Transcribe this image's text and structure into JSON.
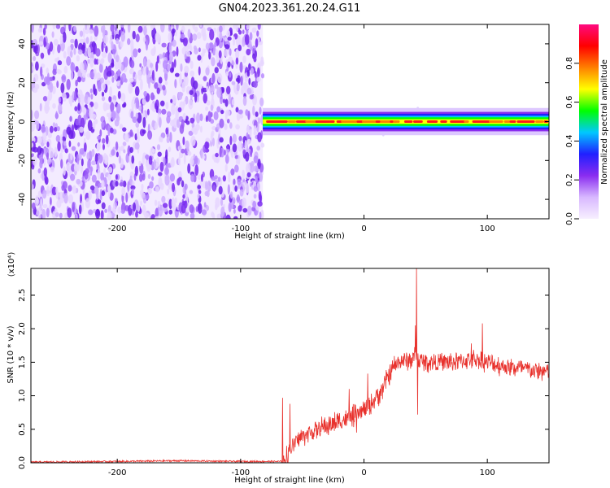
{
  "title": "GN04.2023.361.20.24.G11",
  "colors": {
    "snr_line": "#e8312c",
    "frame": "#000000",
    "spectrogram_noise": "#7a2cf0",
    "colormap": [
      "#f7efff",
      "#d8b8ff",
      "#8a2cf0",
      "#2020ff",
      "#00c8ff",
      "#00ff00",
      "#ffff00",
      "#ff8000",
      "#ff0000",
      "#ff0a80"
    ]
  },
  "chart_data": [
    {
      "type": "heatmap",
      "title": "GN04.2023.361.20.24.G11",
      "xlabel": "Height of straight line (km)",
      "ylabel": "Frequency (Hz)",
      "xlim": [
        -270,
        150
      ],
      "ylim": [
        -50,
        50
      ],
      "xticks": [
        -200,
        -100,
        0,
        100
      ],
      "xtick_labels": [
        "-200",
        "-100",
        "0",
        "100"
      ],
      "yticks": [
        -40,
        -20,
        0,
        20,
        40
      ],
      "ytick_labels": [
        "-40",
        "-20",
        "0",
        "20",
        "40"
      ],
      "noise_region_x": [
        -270,
        -82
      ],
      "signal_band": {
        "x": [
          -82,
          150
        ],
        "y": [
          -3,
          3
        ]
      },
      "colorbar": {
        "label": "Normalized spectral amplitude",
        "range": [
          0.0,
          1.0
        ],
        "ticks": [
          0.0,
          0.2,
          0.4,
          0.6,
          0.8
        ],
        "tick_labels": [
          "0.0",
          "0.2",
          "0.4",
          "0.6",
          "0.8"
        ]
      }
    },
    {
      "type": "line",
      "xlabel": "Height of straight line (km)",
      "ylabel": "SNR (10 * v/v)",
      "scale_label": "(x10⁴)",
      "xlim": [
        -270,
        150
      ],
      "ylim": [
        0,
        2.9
      ],
      "xticks": [
        -200,
        -100,
        0,
        100
      ],
      "xtick_labels": [
        "-200",
        "-100",
        "0",
        "100"
      ],
      "yticks": [
        0,
        0.5,
        1.0,
        1.5,
        2.0,
        2.5
      ],
      "ytick_labels": [
        "0.0",
        "0.5",
        "1.0",
        "1.5",
        "2.0",
        "2.5"
      ],
      "series": [
        {
          "x": [
            -270,
            -200,
            -150,
            -100,
            -80,
            -66,
            -62,
            -58,
            -55,
            -50,
            -40,
            -30,
            -20,
            -10,
            0,
            5,
            10,
            15,
            20,
            25,
            30,
            35,
            40,
            42,
            45,
            50,
            60,
            70,
            80,
            90,
            100,
            110,
            120,
            130,
            140,
            150
          ],
          "y": [
            0.01,
            0.02,
            0.03,
            0.02,
            0.02,
            0.02,
            0.12,
            0.25,
            0.32,
            0.4,
            0.48,
            0.55,
            0.62,
            0.68,
            0.78,
            0.85,
            0.98,
            1.1,
            1.3,
            1.45,
            1.52,
            1.52,
            1.55,
            1.6,
            1.52,
            1.5,
            1.5,
            1.5,
            1.52,
            1.55,
            1.5,
            1.45,
            1.42,
            1.4,
            1.37,
            1.35
          ],
          "spikes": [
            {
              "x": 42.5,
              "y": 2.9
            },
            {
              "x": 41.8,
              "y": 2.05
            },
            {
              "x": 43.5,
              "y": 0.72
            },
            {
              "x": 96,
              "y": 2.08
            },
            {
              "x": 87,
              "y": 1.78
            },
            {
              "x": -66,
              "y": 0.97
            },
            {
              "x": -60,
              "y": 0.88
            },
            {
              "x": -12,
              "y": 1.1
            },
            {
              "x": 3,
              "y": 1.33
            },
            {
              "x": -6,
              "y": 0.45
            }
          ]
        }
      ]
    }
  ]
}
